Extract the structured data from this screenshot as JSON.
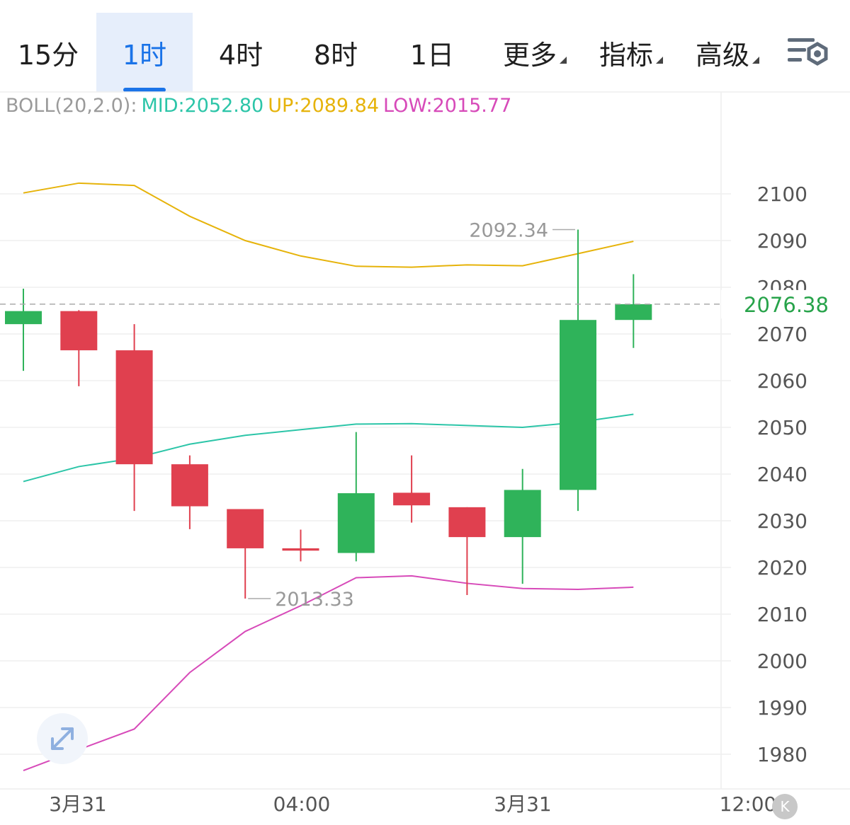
{
  "tabs": [
    {
      "label": "15分",
      "active": false,
      "has_menu": false
    },
    {
      "label": "1时",
      "active": true,
      "has_menu": false
    },
    {
      "label": "4时",
      "active": false,
      "has_menu": false
    },
    {
      "label": "8时",
      "active": false,
      "has_menu": false
    },
    {
      "label": "1日",
      "active": false,
      "has_menu": false
    },
    {
      "label": "更多",
      "active": false,
      "has_menu": true
    },
    {
      "label": "指标",
      "active": false,
      "has_menu": true
    },
    {
      "label": "高级",
      "active": false,
      "has_menu": true
    }
  ],
  "settings_icon": "chart-settings-icon",
  "expand_icon": "expand-arrows-icon",
  "k_button": "K",
  "boll": {
    "prefix": "BOLL(20,2.0):",
    "mid": "MID:2052.80",
    "up": "UP:2089.84",
    "low": "LOW:2015.77"
  },
  "colors": {
    "up_candle": "#2fb35a",
    "down_candle": "#e0404f",
    "mid_line": "#2cc5a8",
    "up_line": "#e6b30a",
    "low_line": "#d74ab9",
    "active_tab": "#1a73e8",
    "last_price": "#27a34a",
    "prefix": "#9a9a9a"
  },
  "chart_data": {
    "type": "candlestick",
    "ylim": [
      1973,
      2114
    ],
    "yticks": [
      1980,
      1990,
      2000,
      2010,
      2020,
      2030,
      2040,
      2050,
      2060,
      2070,
      2080,
      2090,
      2100
    ],
    "xticks": [
      "3月31",
      "04:00",
      "3月31",
      "12:00"
    ],
    "last_price": 2076.38,
    "last_price_label": "2076.38",
    "annotations": [
      {
        "text": "2092.34",
        "candle": 10,
        "value": 2092.34
      },
      {
        "text": "2013.33",
        "candle": 4,
        "value": 2013.33
      }
    ],
    "candles": [
      {
        "open": 2072.1,
        "high": 2079.7,
        "low": 2062.1,
        "close": 2074.9
      },
      {
        "open": 2074.9,
        "high": 2075.1,
        "low": 2058.8,
        "close": 2066.5
      },
      {
        "open": 2066.5,
        "high": 2072.1,
        "low": 2032.1,
        "close": 2042.1
      },
      {
        "open": 2042.1,
        "high": 2044.0,
        "low": 2028.2,
        "close": 2033.1
      },
      {
        "open": 2032.5,
        "high": 2032.5,
        "low": 2013.33,
        "close": 2024.1
      },
      {
        "open": 2024.1,
        "high": 2028.1,
        "low": 2021.3,
        "close": 2023.6
      },
      {
        "open": 2023.1,
        "high": 2049.0,
        "low": 2021.3,
        "close": 2035.9
      },
      {
        "open": 2036.0,
        "high": 2044.0,
        "low": 2029.6,
        "close": 2033.3
      },
      {
        "open": 2032.9,
        "high": 2032.9,
        "low": 2014.1,
        "close": 2026.5
      },
      {
        "open": 2026.5,
        "high": 2041.1,
        "low": 2016.5,
        "close": 2036.6
      },
      {
        "open": 2036.6,
        "high": 2092.34,
        "low": 2032.1,
        "close": 2073.0
      },
      {
        "open": 2073.0,
        "high": 2082.8,
        "low": 2067.0,
        "close": 2076.38
      }
    ],
    "series": [
      {
        "name": "UP",
        "values": [
          2100.2,
          2102.3,
          2101.8,
          2095.2,
          2090.0,
          2086.7,
          2084.5,
          2084.3,
          2084.8,
          2084.6,
          2087.2,
          2089.84
        ]
      },
      {
        "name": "MID",
        "values": [
          2038.4,
          2041.6,
          2043.4,
          2046.4,
          2048.3,
          2049.5,
          2050.7,
          2050.8,
          2050.4,
          2050.0,
          2051.1,
          2052.8
        ]
      },
      {
        "name": "LOW",
        "values": [
          1976.5,
          1981.0,
          1985.4,
          1997.5,
          2006.3,
          2011.8,
          2017.8,
          2018.2,
          2016.6,
          2015.5,
          2015.3,
          2015.77
        ]
      }
    ]
  }
}
